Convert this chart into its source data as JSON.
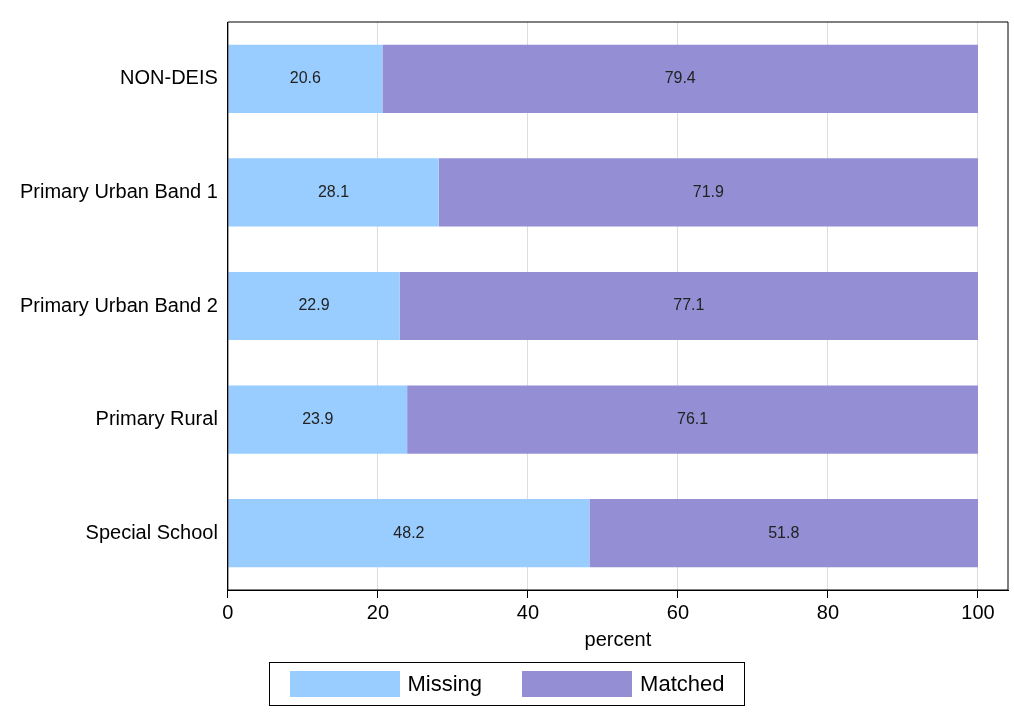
{
  "chart_data": {
    "type": "bar",
    "orientation": "horizontal",
    "stacked": true,
    "xlabel": "percent",
    "categories": [
      "NON-DEIS",
      "Primary Urban Band 1",
      "Primary Urban Band 2",
      "Primary Rural",
      "Special School"
    ],
    "series": [
      {
        "name": "Missing",
        "color": "#99ccff",
        "values": [
          20.6,
          28.1,
          22.9,
          23.9,
          48.2
        ]
      },
      {
        "name": "Matched",
        "color": "#948fd4",
        "values": [
          79.4,
          71.9,
          77.1,
          76.1,
          51.8
        ]
      }
    ],
    "xlim": [
      0,
      104
    ],
    "xticks": [
      0,
      20,
      40,
      60,
      80,
      100
    ],
    "grid": "x",
    "legend": "bottom",
    "data_labels": true
  }
}
